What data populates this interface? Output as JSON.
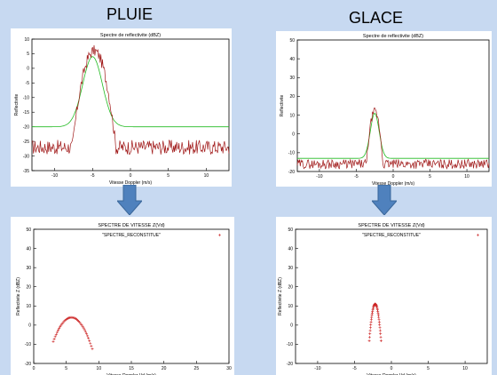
{
  "titles": {
    "left": "PLUIE",
    "right": "GLACE"
  },
  "chart_data": [
    {
      "type": "line",
      "title": "Spectre de reflectivite (dBZ)",
      "xlabel": "Vitesse Doppler (m/s)",
      "ylabel": "Reflectivite",
      "xlim": [
        -13,
        13
      ],
      "ylim": [
        -35,
        10
      ],
      "xticks": [
        -10,
        -5,
        0,
        5,
        10
      ],
      "yticks": [
        -35,
        -30,
        -25,
        -20,
        -15,
        -10,
        -5,
        0,
        5,
        10
      ],
      "grid": false,
      "series": [
        {
          "color": "#a01818",
          "type": "measured",
          "noise_floor": -27,
          "peak_x": -4.8,
          "peak_y": 6,
          "halfwidth": 1.8
        },
        {
          "color": "#22bb22",
          "type": "gaussian_fit",
          "baseline": -20,
          "peak_x": -5,
          "peak_y": 4,
          "sigma": 1.3
        }
      ]
    },
    {
      "type": "line",
      "title": "Spectre de reflectivite (dBZ)",
      "xlabel": "Vitesse Doppler (m/s)",
      "ylabel": "Reflectivite",
      "xlim": [
        -13,
        13
      ],
      "ylim": [
        -20,
        50
      ],
      "xticks": [
        -10,
        -5,
        0,
        5,
        10
      ],
      "yticks": [
        -20,
        -10,
        0,
        10,
        20,
        30,
        40,
        50
      ],
      "grid": false,
      "series": [
        {
          "color": "#a01818",
          "type": "measured",
          "noise_floor": -16,
          "peak_x": -2.5,
          "peak_y": 12,
          "halfwidth": 0.7
        },
        {
          "color": "#22bb22",
          "type": "gaussian_fit",
          "baseline": -13,
          "peak_x": -2.5,
          "peak_y": 11,
          "sigma": 0.6
        }
      ]
    },
    {
      "type": "scatter",
      "title": "SPECTRE DE VITESSE Z(Vd)",
      "xlabel": "Vitesse Doppler  Vd (m/s)",
      "ylabel": "Reflectivite Z (dBZ)",
      "legend": "\"SPECTRE_RECONSTITUE\"",
      "xlim": [
        0,
        30
      ],
      "ylim": [
        -20,
        50
      ],
      "xticks": [
        0,
        5,
        10,
        15,
        20,
        25,
        30
      ],
      "yticks": [
        -20,
        -10,
        0,
        10,
        20,
        30,
        40,
        50
      ],
      "series": [
        {
          "color": "#cc2222",
          "peak_x": 5.8,
          "peak_y": 4,
          "curvature": 1.6,
          "x_from": 3.0,
          "x_to": 9.0
        }
      ]
    },
    {
      "type": "scatter",
      "title": "SPECTRE DE VITESSE Z(Vd)",
      "xlabel": "Vitesse Doppler  Vd (m/s)",
      "ylabel": "Reflectivite Z (dBZ)",
      "legend": "\"SPECTRE_RECONSTITUE\"",
      "xlim": [
        -13,
        13
      ],
      "ylim": [
        -20,
        50
      ],
      "xticks": [
        -10,
        -5,
        0,
        5,
        10
      ],
      "yticks": [
        -20,
        -10,
        0,
        10,
        20,
        30,
        40,
        50
      ],
      "series": [
        {
          "color": "#cc2222",
          "peak_x": -2.2,
          "peak_y": 11,
          "curvature": 30,
          "x_from": -3.0,
          "x_to": -1.4
        }
      ]
    }
  ]
}
